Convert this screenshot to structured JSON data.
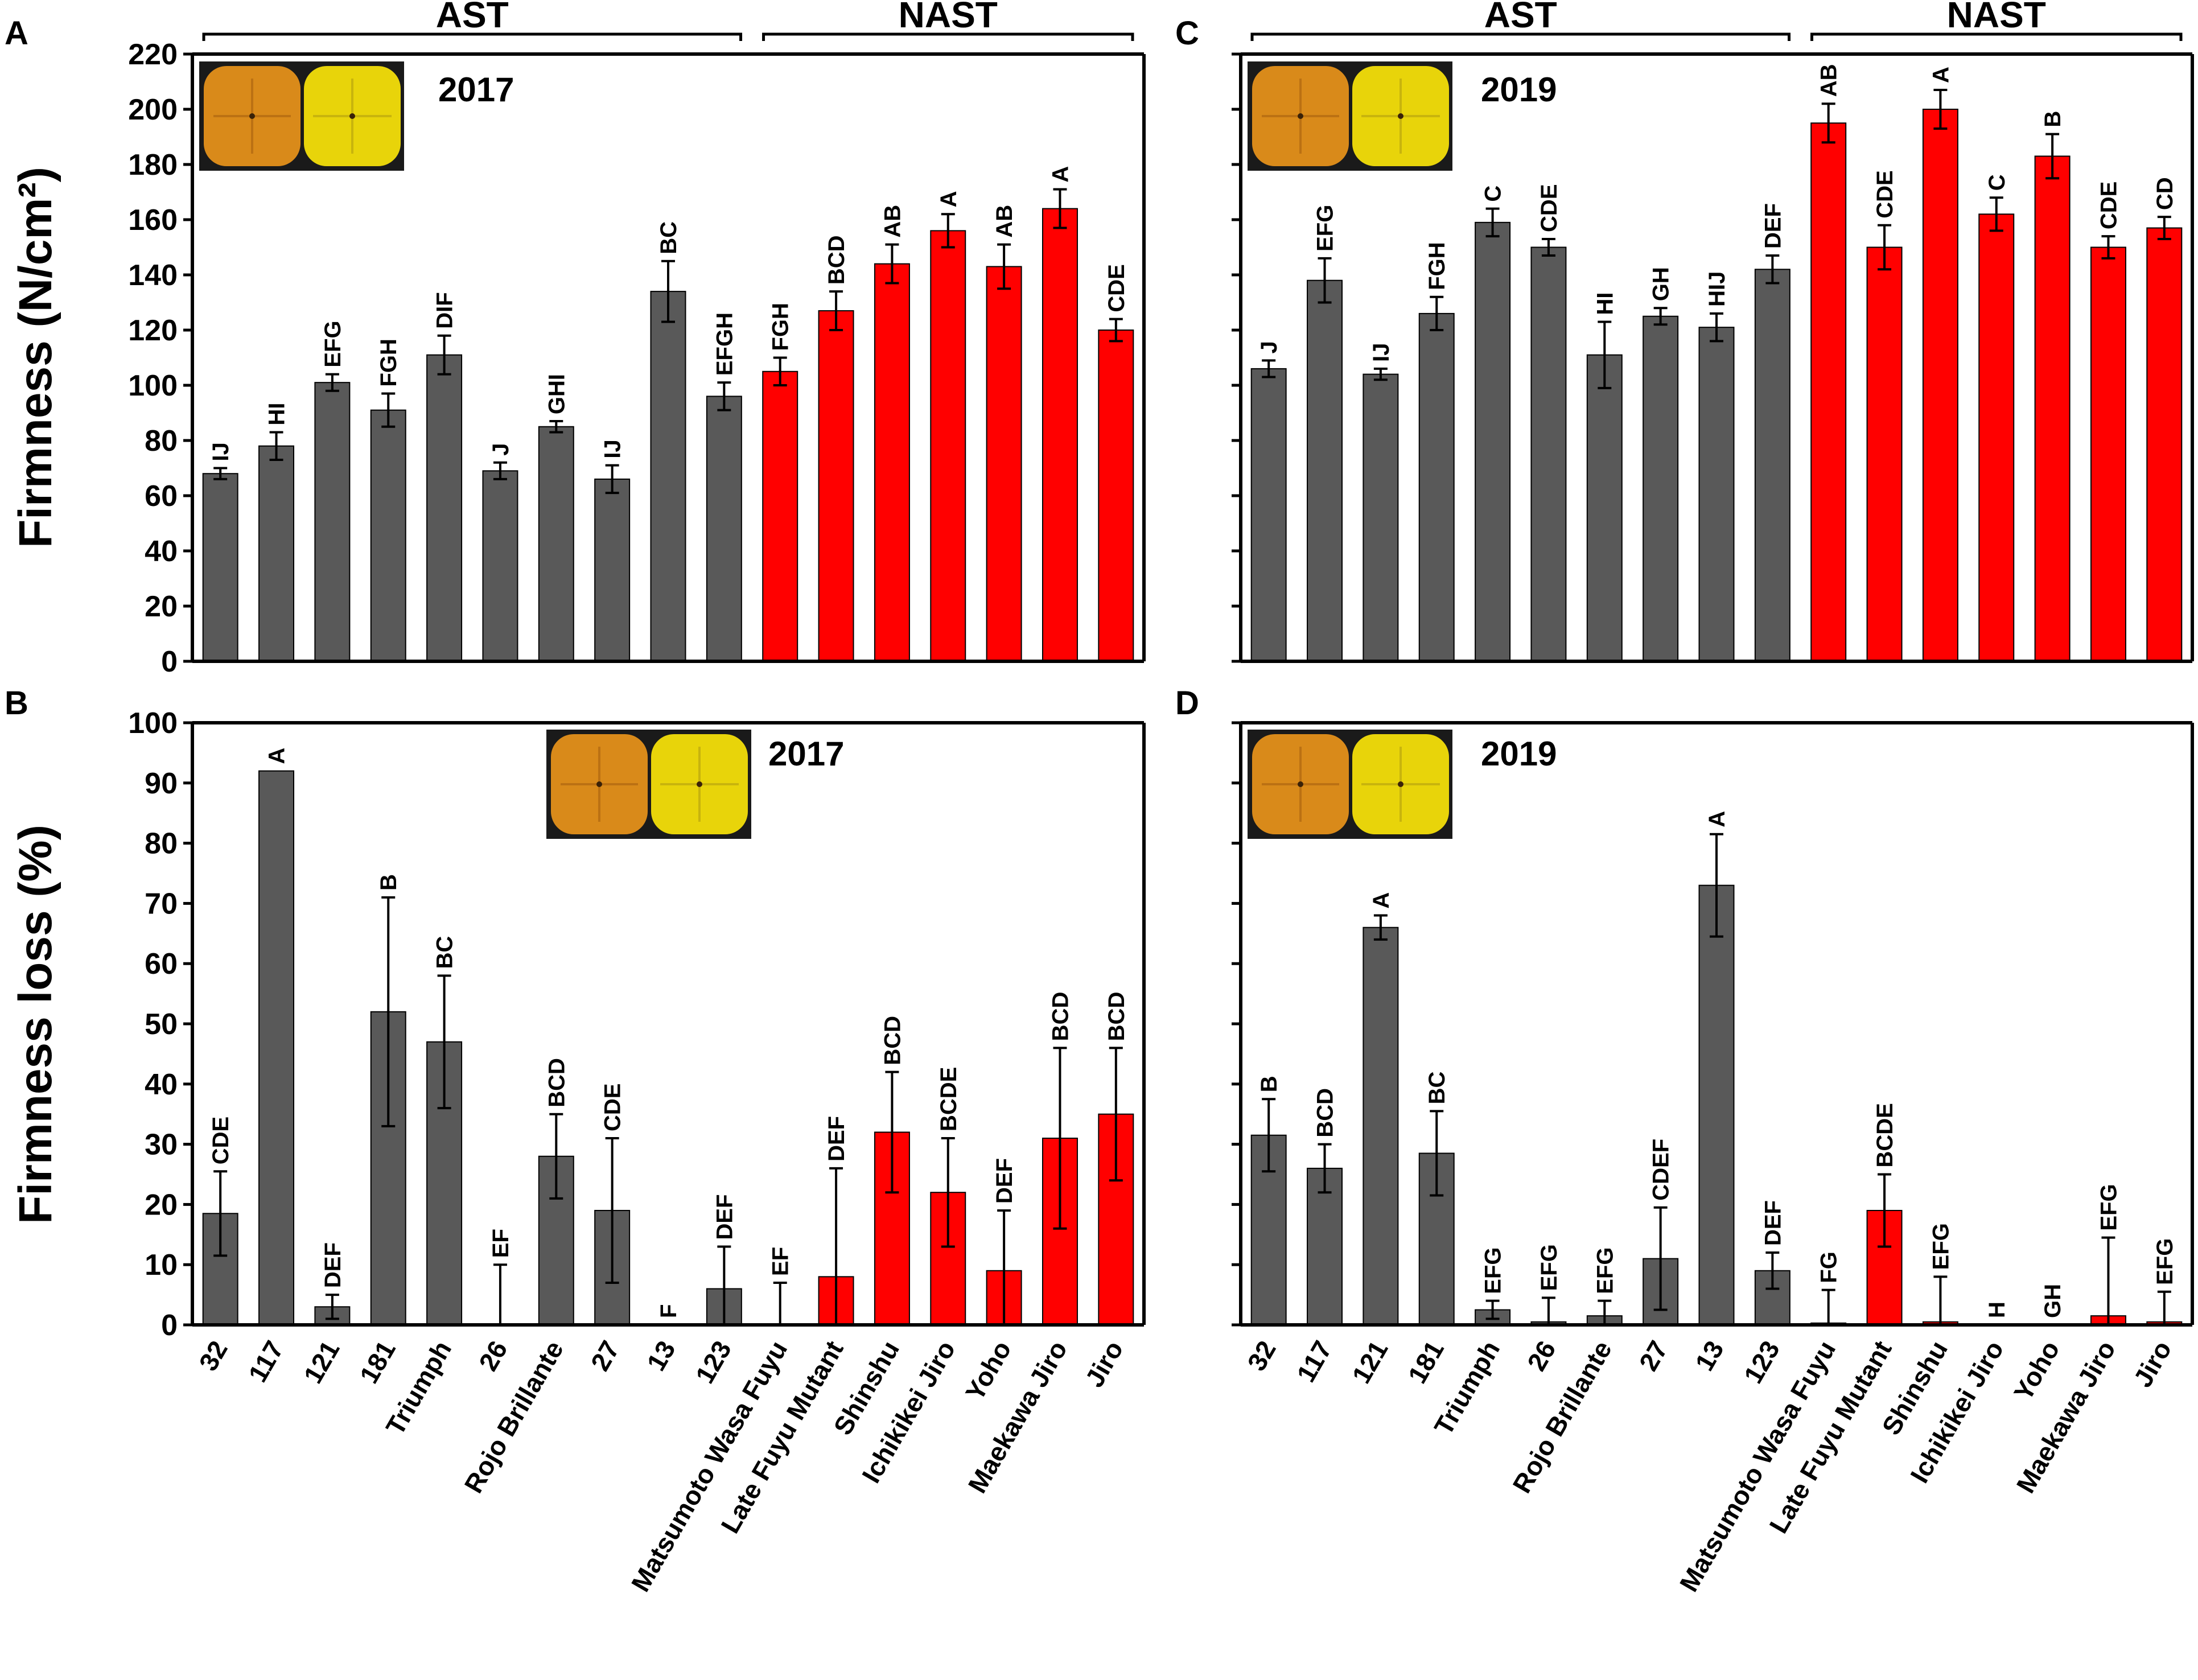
{
  "colors": {
    "ast": "#595959",
    "nast": "#ff0000",
    "axis": "#000000",
    "fruit_dark_orange": "#d98a1a",
    "fruit_light_yellow": "#e8d40a",
    "photo_bg": "#1a1a1a"
  },
  "categories": [
    "32",
    "117",
    "121",
    "181",
    "Triumph",
    "26",
    "Rojo Brillante",
    "27",
    "13",
    "123",
    "Matsumoto Wasa Fuyu",
    "Late Fuyu Mutant",
    "Shinshu",
    "Ichikikei Jiro",
    "Yoho",
    "Maekawa Jiro",
    "Jiro"
  ],
  "groups": [
    {
      "name": "AST",
      "from": 0,
      "to": 9
    },
    {
      "name": "NAST",
      "from": 10,
      "to": 16
    }
  ],
  "photo_icons": [
    "persimmon-fruit-photo"
  ],
  "chart_data": [
    {
      "id": "A",
      "panel_label": "A",
      "type": "bar",
      "year": "2017",
      "ylabel": "Firmness (N/cm²)",
      "ylim": [
        0,
        220
      ],
      "yticks": [
        "0",
        "20",
        "40",
        "60",
        "80",
        "100",
        "120",
        "140",
        "160",
        "180",
        "200",
        "220"
      ],
      "values": [
        68,
        78,
        101,
        91,
        111,
        69,
        85,
        66,
        134,
        96,
        105,
        127,
        144,
        156,
        143,
        164,
        120
      ],
      "errors": [
        2,
        5,
        3,
        6,
        7,
        3,
        2,
        5,
        11,
        5,
        5,
        7,
        7,
        6,
        8,
        7,
        4
      ],
      "letters": [
        "IJ",
        "HI",
        "EFG",
        "FGH",
        "DIF",
        "J",
        "GHI",
        "IJ",
        "BC",
        "EFGH",
        "FGH",
        "BCD",
        "AB",
        "A",
        "AB",
        "A",
        "CDE"
      ]
    },
    {
      "id": "B",
      "panel_label": "B",
      "type": "bar",
      "year": "2017",
      "ylabel": "Firmness loss (%)",
      "ylim": [
        0,
        100
      ],
      "yticks": [
        "0",
        "10",
        "20",
        "30",
        "40",
        "50",
        "60",
        "70",
        "80",
        "90",
        "100"
      ],
      "values": [
        18.5,
        92,
        3,
        52,
        47,
        0,
        28,
        19,
        0,
        6,
        0,
        8,
        32,
        22,
        9,
        31,
        35
      ],
      "errors": [
        7,
        0,
        2,
        19,
        11,
        10,
        7,
        12,
        0,
        7,
        7,
        18,
        10,
        9,
        10,
        15,
        11
      ],
      "letters": [
        "CDE",
        "A",
        "DEF",
        "B",
        "BC",
        "EF",
        "BCD",
        "CDE",
        "F",
        "DEF",
        "EF",
        "DEF",
        "BCD",
        "BCDE",
        "DEF",
        "BCD",
        "BCD"
      ]
    },
    {
      "id": "C",
      "panel_label": "C",
      "type": "bar",
      "year": "2019",
      "ylabel": "",
      "ylim": [
        0,
        220
      ],
      "yticks": [],
      "values": [
        106,
        138,
        104,
        126,
        159,
        150,
        111,
        125,
        121,
        142,
        195,
        150,
        200,
        162,
        183,
        150,
        157
      ],
      "errors": [
        3,
        8,
        2,
        6,
        5,
        3,
        12,
        3,
        5,
        5,
        7,
        8,
        7,
        6,
        8,
        4,
        4
      ],
      "letters": [
        "J",
        "EFG",
        "IJ",
        "FGH",
        "C",
        "CDE",
        "HI",
        "GH",
        "HIJ",
        "DEF",
        "AB",
        "CDE",
        "A",
        "C",
        "B",
        "CDE",
        "CD"
      ]
    },
    {
      "id": "D",
      "panel_label": "D",
      "type": "bar",
      "year": "2019",
      "ylabel": "",
      "ylim": [
        0,
        100
      ],
      "yticks": [],
      "values": [
        31.5,
        26,
        66,
        28.5,
        2.5,
        0.5,
        1.5,
        11,
        73,
        9,
        0.3,
        19,
        0.5,
        0,
        0,
        1.5,
        0.5
      ],
      "errors": [
        6,
        4,
        2,
        7,
        1.5,
        4,
        2.5,
        8.5,
        8.5,
        3,
        5.5,
        6,
        7.5,
        0,
        0,
        13,
        5
      ],
      "letters": [
        "B",
        "BCD",
        "A",
        "BC",
        "EFG",
        "EFG",
        "EFG",
        "CDEF",
        "A",
        "DEF",
        "FG",
        "BCDE",
        "EFG",
        "H",
        "GH",
        "EFG",
        "EFG"
      ]
    }
  ]
}
